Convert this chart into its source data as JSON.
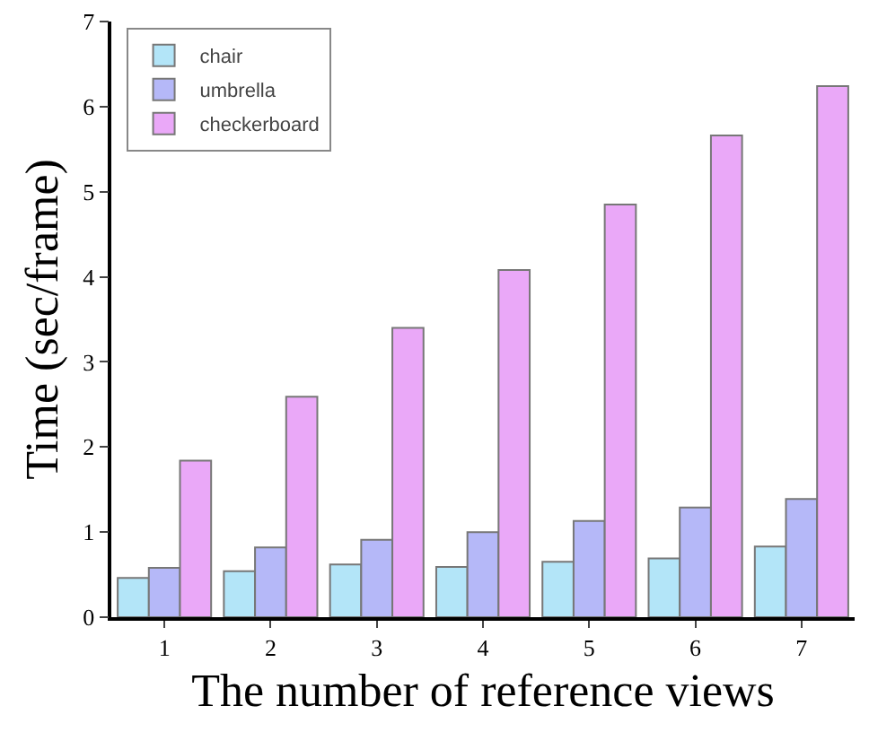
{
  "chart_data": {
    "type": "bar",
    "xlabel": "The number of reference views",
    "ylabel": "Time (sec/frame)",
    "categories": [
      "1",
      "2",
      "3",
      "4",
      "5",
      "6",
      "7"
    ],
    "series": [
      {
        "name": "chair",
        "color": "#b3e5f8",
        "values": [
          0.46,
          0.54,
          0.62,
          0.59,
          0.65,
          0.69,
          0.83
        ]
      },
      {
        "name": "umbrella",
        "color": "#b5b8f8",
        "values": [
          0.58,
          0.82,
          0.91,
          1.0,
          1.13,
          1.29,
          1.39
        ]
      },
      {
        "name": "checkerboard",
        "color": "#eaa8f8",
        "values": [
          1.84,
          2.59,
          3.4,
          4.08,
          4.85,
          5.66,
          6.24
        ]
      }
    ],
    "ylim": [
      0,
      7
    ],
    "yticks": [
      0,
      1,
      2,
      3,
      4,
      5,
      6,
      7
    ],
    "grid": false,
    "legend": "top left"
  }
}
